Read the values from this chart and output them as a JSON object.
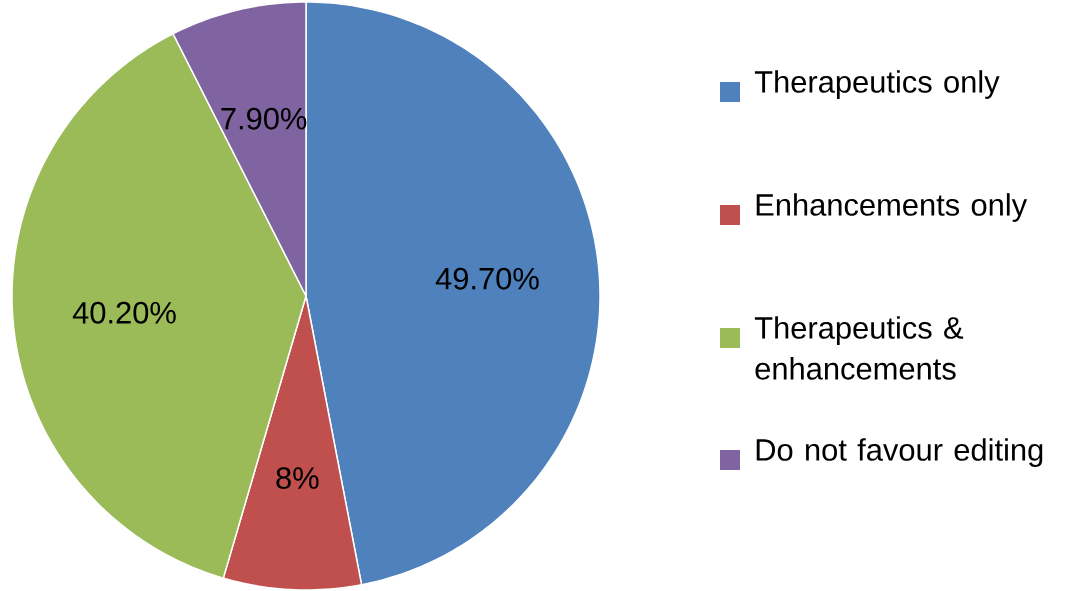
{
  "chart_data": {
    "type": "pie",
    "categories": [
      "Therapeutics only",
      "Enhancements only",
      "Therapeutics & enhancements",
      "Do not favour editing"
    ],
    "values": [
      49.7,
      8,
      40.2,
      7.9
    ],
    "value_labels": [
      "49.70%",
      "8%",
      "40.20%",
      "7.90%"
    ],
    "colors": [
      "#4f81bd",
      "#c0504d",
      "#9bbb59",
      "#8064a2"
    ],
    "legend": "right"
  }
}
